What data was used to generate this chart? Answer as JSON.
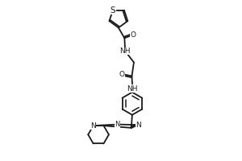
{
  "bg_color": "#ffffff",
  "line_color": "#1a1a1a",
  "lw": 1.3,
  "fs": 6.5,
  "xlim": [
    0.05,
    0.95
  ],
  "ylim": [
    0.02,
    0.98
  ]
}
